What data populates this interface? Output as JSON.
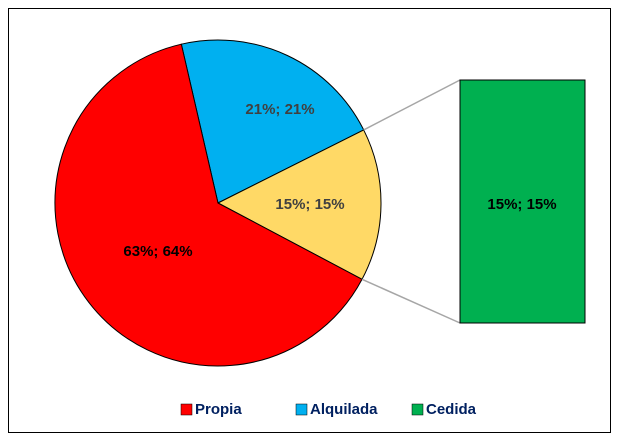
{
  "chart_data": {
    "type": "pie-of-bar",
    "categories": [
      "Propia",
      "Alquilada",
      "Cedida"
    ],
    "values": [
      63,
      21,
      15
    ],
    "value_labels": [
      "63%; 64%",
      "21%; 21%",
      "15%; 15%"
    ],
    "colors": [
      "#ff0000",
      "#00b0f0",
      "#00b050"
    ],
    "other_color": "#ffd966",
    "legend": "bottom"
  }
}
